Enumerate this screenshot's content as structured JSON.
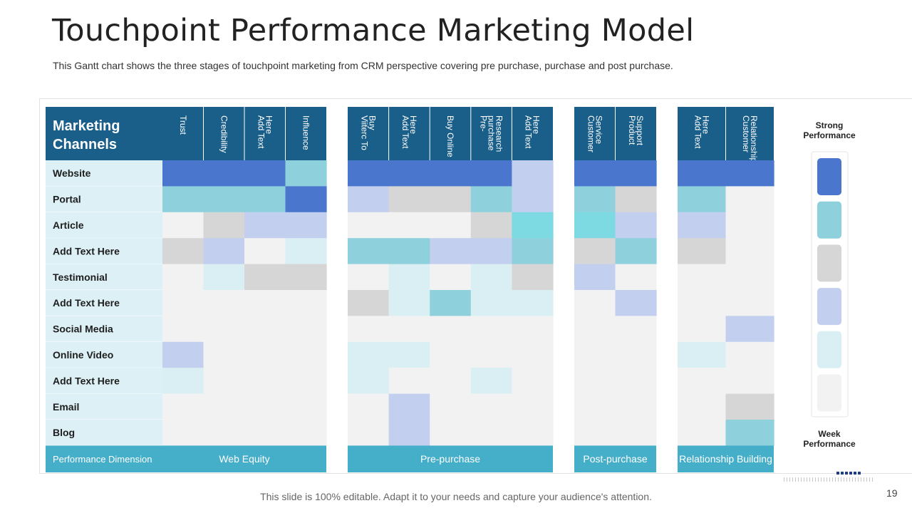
{
  "page": {
    "title": "Touchpoint Performance Marketing Model",
    "subtitle": "This Gantt chart shows the three stages of touchpoint marketing from CRM perspective covering pre purchase, purchase and post purchase.",
    "footer": "This slide is 100% editable. Adapt it to your needs and capture your audience's attention.",
    "page_number": "19"
  },
  "chart_data": {
    "type": "heatmap",
    "title": "Touchpoint Performance Marketing Model",
    "row_header": [
      "Marketing",
      "Channels"
    ],
    "footer_label": "Performance  Dimension",
    "rows": [
      "Website",
      "Portal",
      "Article",
      "Add Text Here",
      "Testimonial",
      "Add Text Here",
      "Social Media",
      "Online Video",
      "Add Text Here",
      "Email",
      "Blog"
    ],
    "groups": [
      {
        "name": "Web Equity",
        "columns": [
          [
            "Trust"
          ],
          [
            "Credibility"
          ],
          [
            "Add Text",
            "Here"
          ],
          [
            "Influence"
          ]
        ]
      },
      {
        "name": "Pre-purchase",
        "columns": [
          [
            "Viiterc To",
            "Buy"
          ],
          [
            "Add Text",
            "Here"
          ],
          [
            "Buy Online"
          ],
          [
            "Pre-",
            "purchase",
            "Research"
          ],
          [
            "Add Text",
            "Here"
          ]
        ]
      },
      {
        "name": "Post-purchase",
        "columns": [
          [
            "Customer",
            "Service"
          ],
          [
            "Product",
            "Support"
          ]
        ]
      },
      {
        "name": "Relationship  Building",
        "columns": [
          [
            "Add Text",
            "Here"
          ],
          [
            "Customer",
            "Relationship"
          ]
        ]
      }
    ],
    "scale": "0 = Week Performance ... 6 = Strong Performance",
    "values": [
      [
        6,
        6,
        6,
        5,
        6,
        6,
        6,
        6,
        4,
        6,
        6,
        6,
        6
      ],
      [
        5,
        5,
        5,
        6,
        4,
        1,
        1,
        5,
        4,
        5,
        1,
        5,
        0
      ],
      [
        0,
        1,
        4,
        4,
        0,
        0,
        0,
        1,
        3,
        3,
        4,
        4,
        0
      ],
      [
        1,
        4,
        0,
        2,
        5,
        5,
        4,
        4,
        5,
        1,
        5,
        1,
        0
      ],
      [
        0,
        2,
        1,
        1,
        0,
        2,
        0,
        2,
        1,
        4,
        0,
        0,
        0
      ],
      [
        0,
        0,
        0,
        0,
        1,
        2,
        5,
        2,
        2,
        0,
        4,
        0,
        0
      ],
      [
        0,
        0,
        0,
        0,
        0,
        0,
        0,
        0,
        0,
        0,
        0,
        0,
        4
      ],
      [
        4,
        0,
        0,
        0,
        2,
        2,
        0,
        0,
        0,
        0,
        0,
        2,
        0
      ],
      [
        2,
        0,
        0,
        0,
        2,
        0,
        0,
        2,
        0,
        0,
        0,
        0,
        0
      ],
      [
        0,
        0,
        0,
        0,
        0,
        4,
        0,
        0,
        0,
        0,
        0,
        0,
        1
      ],
      [
        0,
        0,
        0,
        0,
        0,
        4,
        0,
        0,
        0,
        0,
        0,
        0,
        5
      ]
    ],
    "legend": {
      "top_label": [
        "Strong",
        "Performance"
      ],
      "bottom_label": [
        "Week",
        "Performance"
      ],
      "levels": [
        6,
        5,
        1,
        4,
        2,
        0
      ]
    },
    "colors": {
      "header": "#1a5e8a",
      "footer": "#45aec8",
      "label_bg": "#dcf0f5",
      "level_0": "#f2f2f2",
      "level_1": "#d6d6d6",
      "level_2": "#daeff4",
      "level_3": "#7dd9e2",
      "level_4": "#c3cfef",
      "level_5": "#8fd0dd",
      "level_6": "#4a77cd"
    }
  }
}
